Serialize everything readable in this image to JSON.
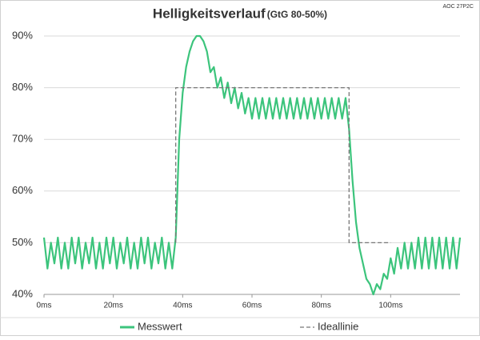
{
  "chart_data": {
    "type": "line",
    "title": "Helligkeitsverlauf",
    "subtitle": "(GtG 80-50%)",
    "note": "AOC 27P2C",
    "xlim": [
      0,
      120
    ],
    "xticks": [
      {
        "value": 0,
        "label": "0ms"
      },
      {
        "value": 20,
        "label": "20ms"
      },
      {
        "value": 40,
        "label": "40ms"
      },
      {
        "value": 60,
        "label": "60ms"
      },
      {
        "value": 80,
        "label": "80ms"
      },
      {
        "value": 100,
        "label": "100ms"
      }
    ],
    "ylim": [
      40,
      90
    ],
    "yticks": [
      {
        "value": 40,
        "label": "40%"
      },
      {
        "value": 50,
        "label": "50%"
      },
      {
        "value": 60,
        "label": "60%"
      },
      {
        "value": 70,
        "label": "70%"
      },
      {
        "value": 80,
        "label": "80%"
      },
      {
        "value": 90,
        "label": "90%"
      }
    ],
    "grid": true,
    "legend": "bottom",
    "series": [
      {
        "name": "Messwert",
        "color": "#3cc47c",
        "x": [
          0,
          1,
          2,
          3,
          4,
          5,
          6,
          7,
          8,
          9,
          10,
          11,
          12,
          13,
          14,
          15,
          16,
          17,
          18,
          19,
          20,
          21,
          22,
          23,
          24,
          25,
          26,
          27,
          28,
          29,
          30,
          31,
          32,
          33,
          34,
          35,
          36,
          37,
          38,
          39,
          40,
          41,
          42,
          43,
          44,
          45,
          46,
          47,
          48,
          49,
          50,
          51,
          52,
          53,
          54,
          55,
          56,
          57,
          58,
          59,
          60,
          61,
          62,
          63,
          64,
          65,
          66,
          67,
          68,
          69,
          70,
          71,
          72,
          73,
          74,
          75,
          76,
          77,
          78,
          79,
          80,
          81,
          82,
          83,
          84,
          85,
          86,
          87,
          88,
          89,
          90,
          91,
          92,
          93,
          94,
          95,
          96,
          97,
          98,
          99,
          100,
          101,
          102,
          103,
          104,
          105,
          106,
          107,
          108,
          109,
          110,
          111,
          112,
          113,
          114,
          115,
          116,
          117,
          118,
          119,
          120
        ],
        "values": [
          51,
          45,
          50,
          46,
          51,
          45,
          50,
          45,
          51,
          46,
          51,
          45,
          50,
          46,
          51,
          45,
          50,
          45,
          51,
          46,
          51,
          45,
          50,
          46,
          51,
          45,
          50,
          45,
          51,
          46,
          51,
          45,
          50,
          46,
          51,
          45,
          50,
          45,
          51,
          70,
          79,
          84,
          87,
          89,
          90,
          90,
          89,
          87,
          83,
          84,
          80,
          82,
          78,
          81,
          77,
          80,
          76,
          79,
          75,
          78,
          74,
          78,
          74,
          78,
          74,
          78,
          74,
          78,
          74,
          78,
          74,
          78,
          74,
          78,
          74,
          78,
          74,
          78,
          74,
          78,
          74,
          78,
          74,
          78,
          74,
          78,
          74,
          78,
          72,
          62,
          54,
          49,
          46,
          43,
          42,
          40,
          42,
          41,
          44,
          43,
          47,
          44,
          49,
          45,
          50,
          45,
          50,
          45,
          51,
          45,
          51,
          45,
          51,
          45,
          51,
          45,
          51,
          45,
          51,
          45,
          51
        ]
      },
      {
        "name": "Ideallinie",
        "color": "#777777",
        "dash": true,
        "x": [
          38,
          38,
          88,
          88,
          100
        ],
        "values": [
          50,
          80,
          80,
          50,
          50
        ]
      }
    ]
  }
}
